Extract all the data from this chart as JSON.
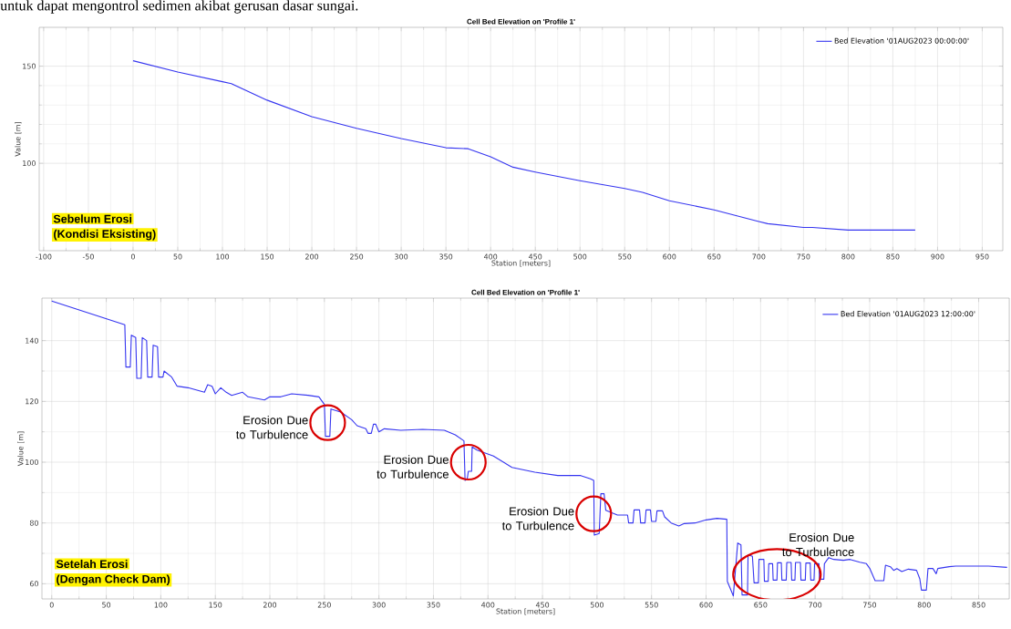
{
  "chart_data": [
    {
      "type": "line",
      "title": "Cell Bed Elevation on 'Profile 1'",
      "subtitle": "untuk dapat mengontrol sedimen akibat gerusan dasar sungai.",
      "xlabel": "Station [meters]",
      "ylabel": "Value [m]",
      "xlim": [
        -105,
        973
      ],
      "xticks": [
        -100,
        -50,
        0,
        50,
        100,
        150,
        200,
        250,
        300,
        350,
        400,
        450,
        500,
        550,
        600,
        650,
        700,
        750,
        800,
        850,
        900,
        950
      ],
      "ylim": [
        55,
        170
      ],
      "yticks": [
        100,
        150
      ],
      "grid": true,
      "legend": "top right",
      "x": [
        0,
        50,
        100,
        110,
        150,
        200,
        250,
        300,
        350,
        375,
        400,
        425,
        450,
        500,
        550,
        570,
        600,
        650,
        700,
        710,
        750,
        760,
        800,
        850,
        875
      ],
      "series": [
        {
          "name": "Bed Elevation '01AUG2023 00:00:00'",
          "color": "#3535f0",
          "values": [
            152.8,
            147,
            142,
            141,
            132.5,
            124,
            118,
            112.7,
            108,
            107.5,
            103.3,
            98,
            95.5,
            91,
            87,
            85,
            80.7,
            76,
            70,
            68.9,
            67,
            67,
            65.6,
            65.6,
            65.6
          ]
        }
      ],
      "annotations": [
        "Sebelum Erosi",
        "(Kondisi Eksisting)"
      ]
    },
    {
      "type": "line",
      "title": "Cell Bed Elevation on 'Profile 1'",
      "xlabel": "Station [meters]",
      "ylabel": "Value [m]",
      "xlim": [
        -9,
        878
      ],
      "xticks": [
        0,
        50,
        100,
        150,
        200,
        250,
        300,
        350,
        400,
        450,
        500,
        550,
        600,
        650,
        700,
        750,
        800,
        850
      ],
      "ylim": [
        55,
        154
      ],
      "yticks": [
        60,
        80,
        100,
        120,
        140
      ],
      "grid": true,
      "legend": "top right",
      "x": [
        0,
        67,
        68,
        72,
        73,
        77,
        78,
        82,
        83,
        87,
        88,
        92,
        93,
        97,
        98,
        102,
        103,
        110,
        115,
        125,
        140,
        143,
        147,
        150,
        155,
        160,
        165,
        175,
        180,
        195,
        200,
        210,
        220,
        235,
        245,
        248,
        250,
        251,
        255,
        256,
        265,
        275,
        280,
        288,
        290,
        293,
        295,
        297,
        300,
        305,
        320,
        340,
        360,
        370,
        378,
        379,
        381,
        382,
        385,
        385.5,
        390,
        405,
        422,
        443,
        464,
        485,
        494,
        497,
        497.5,
        502,
        503.5,
        506.5,
        508,
        518.7,
        528,
        529,
        533,
        534,
        539,
        540,
        544,
        545,
        549,
        550,
        554,
        555,
        560,
        562,
        568,
        575,
        580,
        590,
        600,
        610,
        619,
        619.5,
        625,
        629,
        632,
        633,
        638,
        638.5,
        642.5,
        644,
        648,
        648.5,
        653,
        653.5,
        657,
        657.5,
        661,
        661.5,
        665,
        665.5,
        669,
        669.5,
        673.5,
        674,
        678,
        678.5,
        681.5,
        682,
        686.5,
        687,
        691,
        691.5,
        695.5,
        696,
        699,
        699.5,
        703.5,
        704,
        708,
        708.5,
        712.5,
        717,
        726,
        732,
        741,
        747,
        750,
        755,
        763,
        764.5,
        769,
        772,
        775,
        779.5,
        785.5,
        793,
        796,
        797.5,
        802,
        803.5,
        808,
        811,
        812.5,
        823,
        829,
        859,
        876
      ],
      "series": [
        {
          "name": "Bed Elevation '01AUG2023 12:00:00'",
          "color": "#3535f0",
          "values": [
            153,
            145.2,
            131.3,
            131.3,
            141.8,
            141,
            127.6,
            127.6,
            141,
            140,
            128,
            128,
            138.5,
            138,
            128,
            128,
            130,
            128,
            125,
            124.5,
            123,
            125.5,
            125,
            122.5,
            124.5,
            123,
            122,
            123,
            121.5,
            120.5,
            121.5,
            121.5,
            122.5,
            122,
            121.5,
            120,
            119,
            108.5,
            108.5,
            117.5,
            116.5,
            114,
            112,
            111,
            109.5,
            109.5,
            112.5,
            112.5,
            110,
            111,
            110.5,
            110.8,
            110.5,
            109,
            107,
            94,
            94.5,
            97,
            97,
            105,
            104,
            102,
            98.3,
            96.7,
            95.6,
            95.6,
            94.5,
            94,
            76,
            76.5,
            89.6,
            89.6,
            84.2,
            82.6,
            82.6,
            80,
            80,
            84.3,
            84.3,
            80,
            80,
            84.3,
            84.3,
            80.5,
            80.5,
            84,
            84,
            82,
            80,
            79,
            79.8,
            80,
            81,
            81.5,
            81.2,
            60.8,
            56,
            73.4,
            72.8,
            56.3,
            56.3,
            69.5,
            69,
            60.3,
            60.3,
            68,
            68,
            60.8,
            60.8,
            66.6,
            66.6,
            61.2,
            61.2,
            66.9,
            66.9,
            61.2,
            61.2,
            67,
            67,
            61.2,
            61.2,
            67,
            67,
            61.2,
            61.2,
            66.8,
            66.8,
            61.2,
            61.2,
            66.6,
            66.6,
            61.5,
            61.5,
            66.6,
            68.6,
            68,
            67.7,
            68,
            67.1,
            66.6,
            65.1,
            61,
            61,
            66.1,
            65.6,
            64.4,
            65,
            64,
            64.8,
            64.4,
            61.6,
            57.9,
            57.9,
            65,
            65,
            63.3,
            65,
            65.6,
            65.8,
            65.8,
            65.4
          ]
        }
      ],
      "annotations": [
        {
          "text": "Erosion Due to Turbulence",
          "x": 253,
          "y": 113
        },
        {
          "text": "Erosion Due to Turbulence",
          "x": 382,
          "y": 100
        },
        {
          "text": "Erosion Due to Turbulence",
          "x": 497,
          "y": 83
        },
        {
          "text": "Erosion Due to Turbulence",
          "x": 665,
          "y": 63
        },
        "Setelah Erosi",
        "(Dengan Check Dam)"
      ]
    }
  ]
}
